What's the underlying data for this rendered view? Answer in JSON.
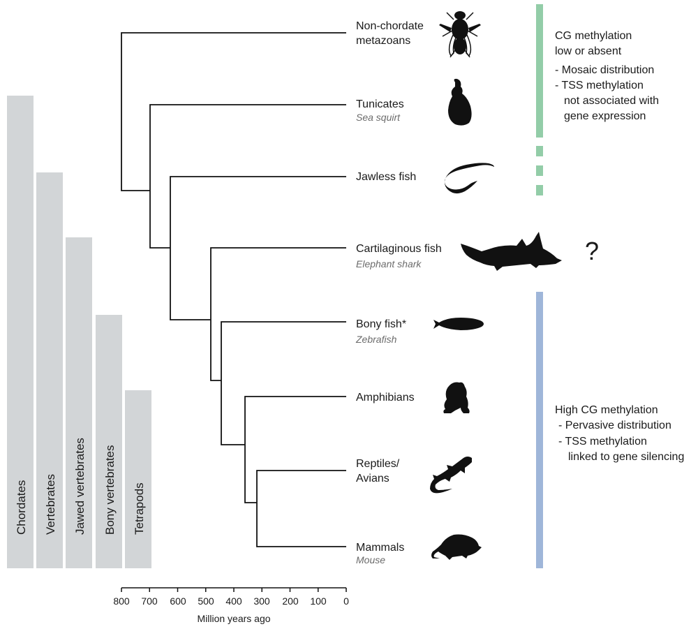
{
  "clades": [
    "Chordates",
    "Vertebrates",
    "Jawed vertebrates",
    "Bony vertebrates",
    "Tetrapods"
  ],
  "taxa": [
    {
      "lines": [
        "Non-chordate",
        "metazoans"
      ],
      "common": "",
      "icon": "fly-icon"
    },
    {
      "lines": [
        "Tunicates"
      ],
      "common": "Sea squirt",
      "icon": "sea-squirt-icon"
    },
    {
      "lines": [
        "Jawless fish"
      ],
      "common": "",
      "icon": "lamprey-icon"
    },
    {
      "lines": [
        "Cartilaginous fish"
      ],
      "common": "Elephant shark",
      "icon": "shark-icon"
    },
    {
      "lines": [
        "Bony fish*"
      ],
      "common": "Zebrafish",
      "icon": "zebrafish-icon"
    },
    {
      "lines": [
        "Amphibians"
      ],
      "common": "",
      "icon": "frog-icon"
    },
    {
      "lines": [
        "Reptiles/",
        "Avians"
      ],
      "common": "",
      "icon": "lizard-icon"
    },
    {
      "lines": [
        "Mammals"
      ],
      "common": "Mouse",
      "icon": "mouse-icon"
    }
  ],
  "axis": {
    "title": "Million years ago",
    "ticks": [
      800,
      700,
      600,
      500,
      400,
      300,
      200,
      100,
      0
    ],
    "range": [
      800,
      0
    ]
  },
  "divergence_mya": {
    "metazoa": 800,
    "chordata": 700,
    "vertebrata": 625,
    "gnathostomata": 480,
    "osteichthyes": 445,
    "tetrapoda": 360,
    "amniota": 320
  },
  "annotations": {
    "low": {
      "lines": [
        "CG methylation",
        "low or absent",
        "- Mosaic distribution",
        "- TSS methylation",
        "not associated with",
        "gene expression"
      ],
      "color": "#93cda8"
    },
    "high": {
      "lines": [
        "High CG methylation",
        "- Pervasive distribution",
        "- TSS methylation",
        "linked to gene silencing"
      ],
      "color": "#9fb6d9"
    },
    "unknown": "?"
  },
  "colors": {
    "clade_bar": "#d2d5d7",
    "branch": "#111111"
  }
}
